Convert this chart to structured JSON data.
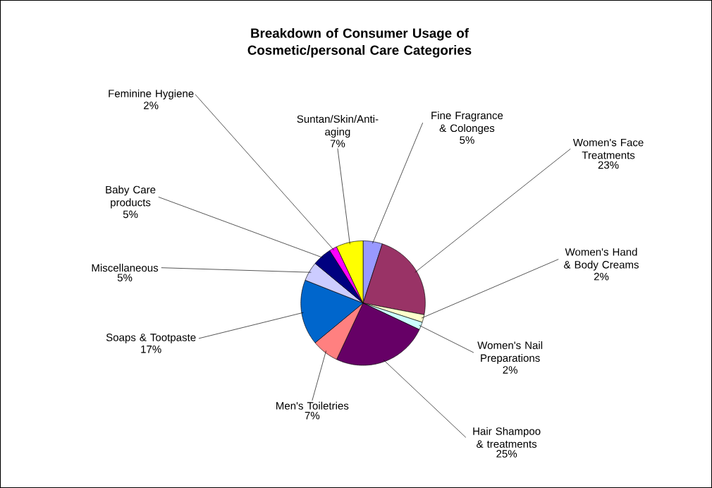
{
  "chart_data": {
    "type": "pie",
    "title": "Breakdown of Consumer Usage of Cosmetic/personal Care Categories",
    "categories": [
      "Fine Fragrance & Colonges",
      "Women's Face Treatments",
      "Women's Hand & Body Creams",
      "Women's Nail Preparations",
      "Hair Shampoo & treatments",
      "Men's Toiletries",
      "Soaps & Tootpaste",
      "Miscellaneous",
      "Baby Care products",
      "Feminine Hygiene",
      "Suntan/Skin/Anti-aging"
    ],
    "values": [
      5,
      23,
      2,
      2,
      25,
      7,
      17,
      5,
      5,
      2,
      7
    ],
    "value_labels": [
      "5%",
      "23%",
      "2%",
      "2%",
      "25%",
      "7%",
      "17%",
      "5%",
      "5%",
      "2%",
      "7%"
    ],
    "colors": [
      "#9999ff",
      "#993366",
      "#ffffcc",
      "#ccffff",
      "#660066",
      "#ff8080",
      "#0066cc",
      "#ccccff",
      "#000080",
      "#ff00ff",
      "#ffff00"
    ]
  }
}
